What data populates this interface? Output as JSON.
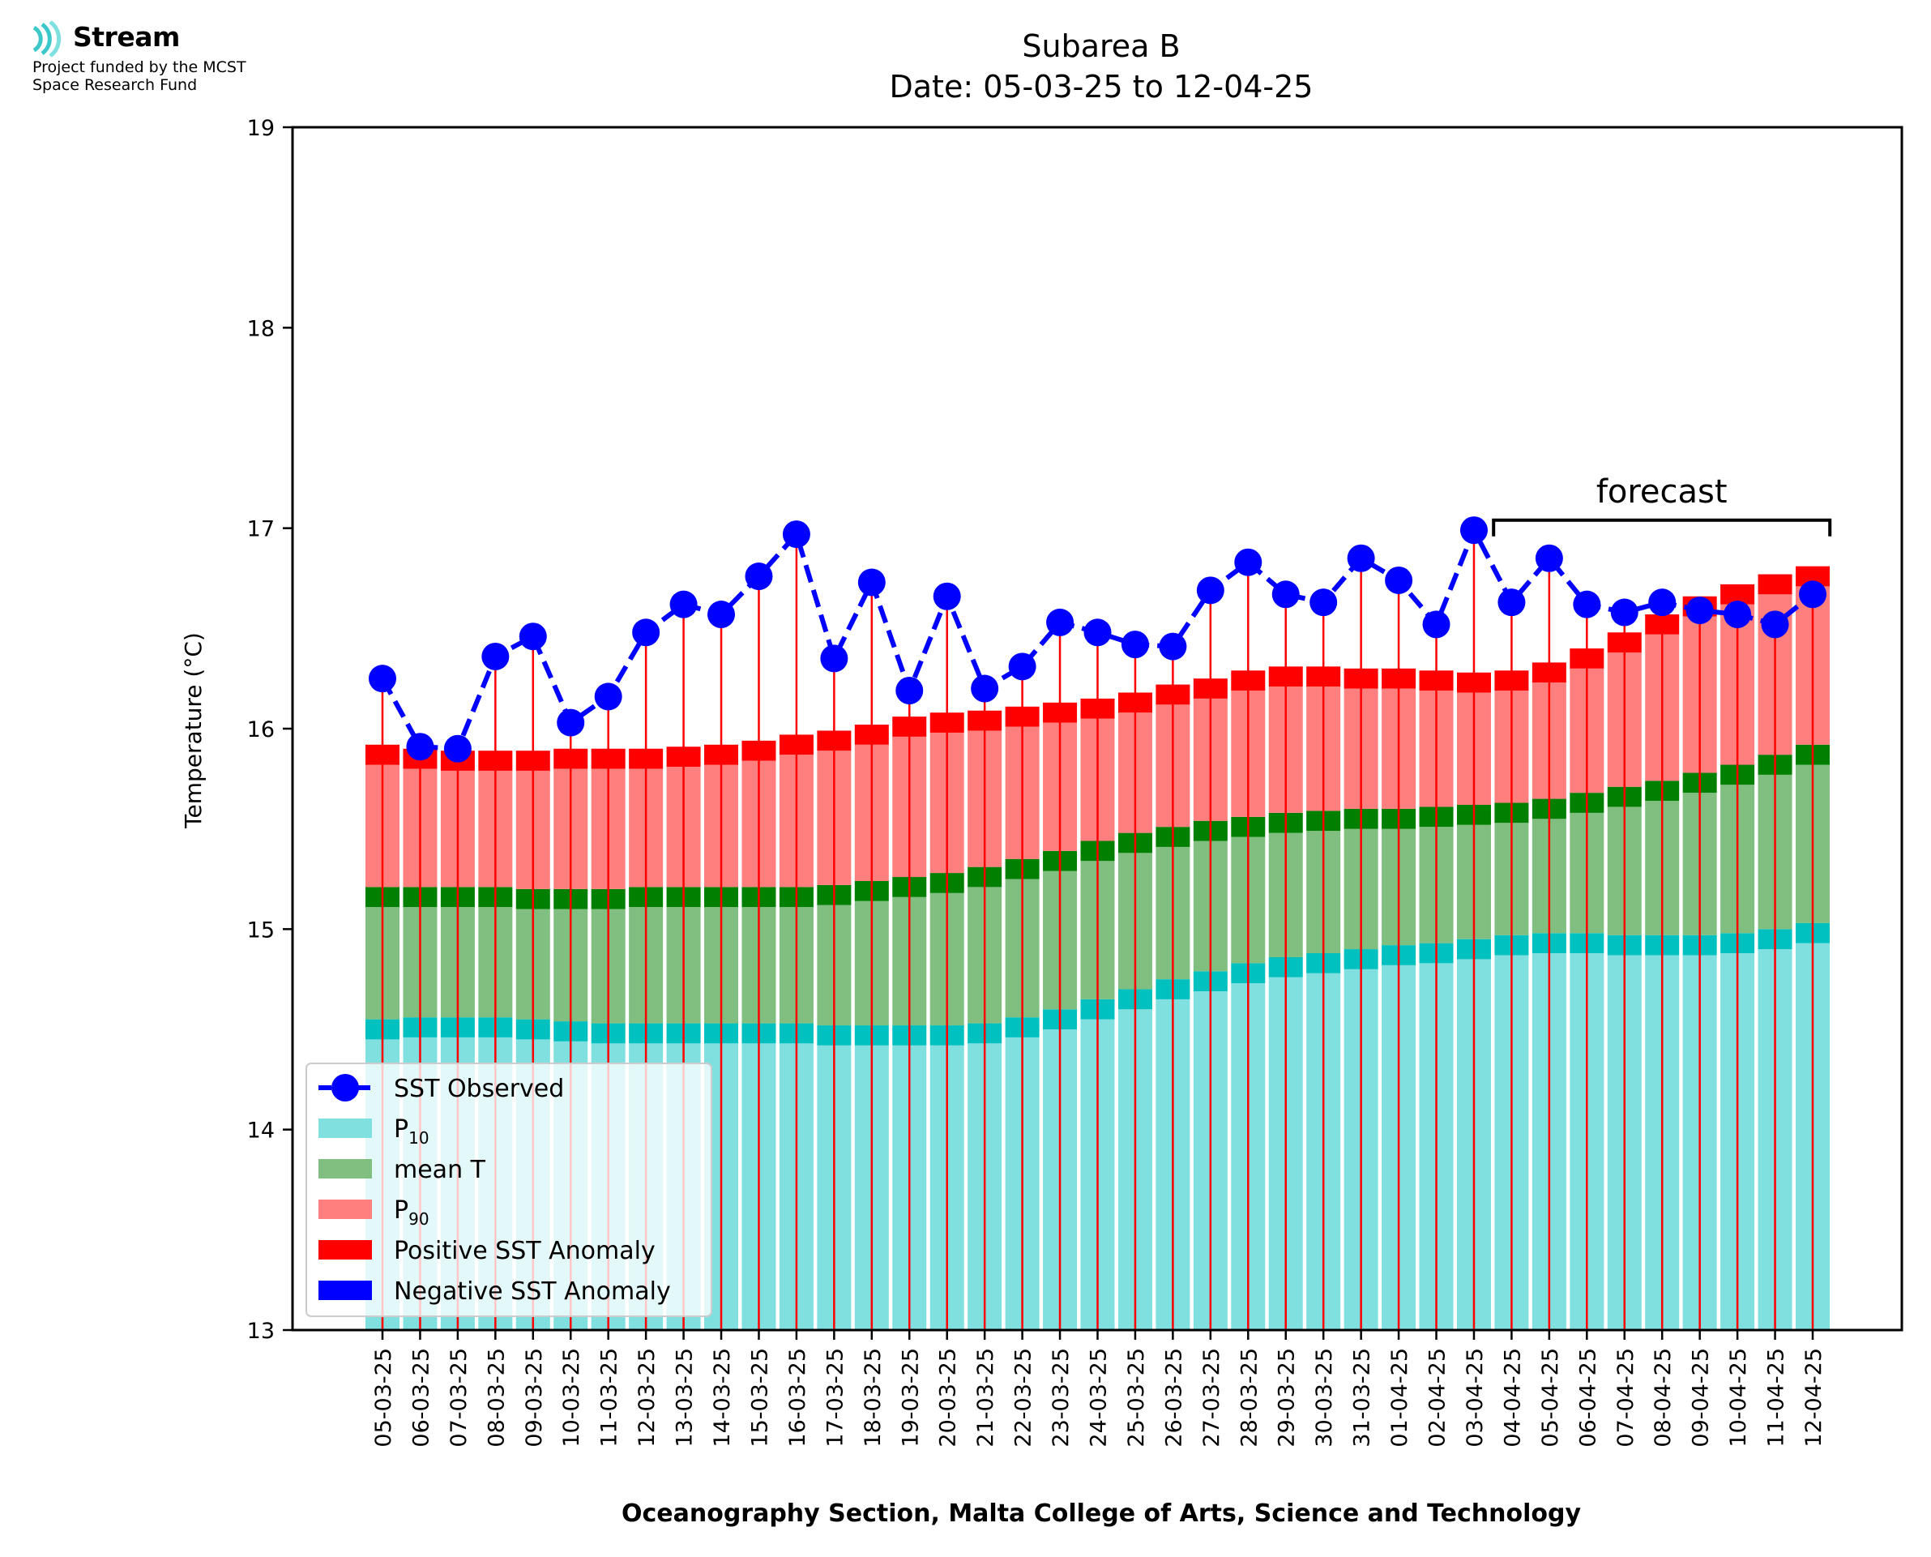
{
  "logo": {
    "name": "Stream",
    "line1": "Project funded by the MCST",
    "line2": "Space Research Fund"
  },
  "colors": {
    "p10": "#80dfdf",
    "p10_cap": "#00c0c0",
    "mean": "#80bf80",
    "mean_cap": "#007f00",
    "p90": "#ff7f7f",
    "p90_cap": "#ff0000",
    "observed": "#0000ff",
    "anomaly_line": "#ff0000",
    "neg_anomaly": "#0000ff"
  },
  "chart_data": {
    "type": "bar",
    "title": "Subarea B",
    "subtitle": "Date: 05-03-25 to 12-04-25",
    "xlabel": "Oceanography Section, Malta College of Arts, Science and Technology",
    "ylabel": "Temperature (°C)",
    "ylim": [
      13,
      19
    ],
    "yticks": [
      13,
      14,
      15,
      16,
      17,
      18,
      19
    ],
    "categories": [
      "05-03-25",
      "06-03-25",
      "07-03-25",
      "08-03-25",
      "09-03-25",
      "10-03-25",
      "11-03-25",
      "12-03-25",
      "13-03-25",
      "14-03-25",
      "15-03-25",
      "16-03-25",
      "17-03-25",
      "18-03-25",
      "19-03-25",
      "20-03-25",
      "21-03-25",
      "22-03-25",
      "23-03-25",
      "24-03-25",
      "25-03-25",
      "26-03-25",
      "27-03-25",
      "28-03-25",
      "29-03-25",
      "30-03-25",
      "31-03-25",
      "01-04-25",
      "02-04-25",
      "03-04-25",
      "04-04-25",
      "05-04-25",
      "06-04-25",
      "07-04-25",
      "08-04-25",
      "09-04-25",
      "10-04-25",
      "11-04-25",
      "12-04-25"
    ],
    "series": [
      {
        "name": "P10",
        "values": [
          14.55,
          14.56,
          14.56,
          14.56,
          14.55,
          14.54,
          14.53,
          14.53,
          14.53,
          14.53,
          14.53,
          14.53,
          14.52,
          14.52,
          14.52,
          14.52,
          14.53,
          14.56,
          14.6,
          14.65,
          14.7,
          14.75,
          14.79,
          14.83,
          14.86,
          14.88,
          14.9,
          14.92,
          14.93,
          14.95,
          14.97,
          14.98,
          14.98,
          14.97,
          14.97,
          14.97,
          14.98,
          15.0,
          15.03
        ]
      },
      {
        "name": "mean T",
        "values": [
          15.21,
          15.21,
          15.21,
          15.21,
          15.2,
          15.2,
          15.2,
          15.21,
          15.21,
          15.21,
          15.21,
          15.21,
          15.22,
          15.24,
          15.26,
          15.28,
          15.31,
          15.35,
          15.39,
          15.44,
          15.48,
          15.51,
          15.54,
          15.56,
          15.58,
          15.59,
          15.6,
          15.6,
          15.61,
          15.62,
          15.63,
          15.65,
          15.68,
          15.71,
          15.74,
          15.78,
          15.82,
          15.87,
          15.92
        ]
      },
      {
        "name": "P90",
        "values": [
          15.92,
          15.9,
          15.89,
          15.89,
          15.89,
          15.9,
          15.9,
          15.9,
          15.91,
          15.92,
          15.94,
          15.97,
          15.99,
          16.02,
          16.06,
          16.08,
          16.09,
          16.11,
          16.13,
          16.15,
          16.18,
          16.22,
          16.25,
          16.29,
          16.31,
          16.31,
          16.3,
          16.3,
          16.29,
          16.28,
          16.29,
          16.33,
          16.4,
          16.48,
          16.57,
          16.66,
          16.72,
          16.77,
          16.81
        ]
      },
      {
        "name": "SST Observed",
        "values": [
          16.25,
          15.91,
          15.9,
          16.36,
          16.46,
          16.03,
          16.16,
          16.48,
          16.62,
          16.57,
          16.76,
          16.97,
          16.35,
          16.73,
          16.19,
          16.66,
          16.2,
          16.31,
          16.53,
          16.48,
          16.42,
          16.41,
          16.69,
          16.83,
          16.67,
          16.63,
          16.85,
          16.74,
          16.52,
          16.99,
          16.63,
          16.85,
          16.62,
          16.58,
          16.63,
          16.59,
          16.57,
          16.52,
          16.67
        ]
      }
    ],
    "legend": {
      "placement": "lower-left",
      "entries": [
        {
          "label": "SST Observed",
          "sub": ""
        },
        {
          "label": "P",
          "sub": "10"
        },
        {
          "label": "mean T",
          "sub": ""
        },
        {
          "label": "P",
          "sub": "90"
        },
        {
          "label": "Positive SST Anomaly",
          "sub": ""
        },
        {
          "label": "Negative SST Anomaly",
          "sub": ""
        }
      ]
    },
    "annotations": [
      {
        "text": "forecast",
        "from": "04-04-25",
        "to": "12-04-25"
      }
    ],
    "grid": false
  }
}
